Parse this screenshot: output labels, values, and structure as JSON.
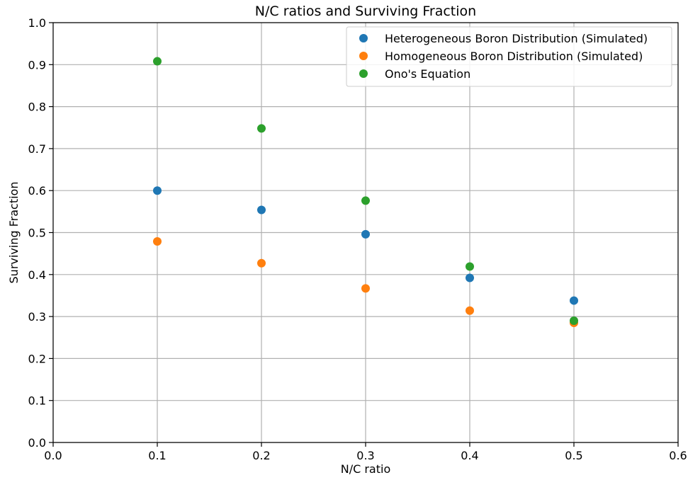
{
  "chart_data": {
    "type": "scatter",
    "title": "N/C ratios and Surviving Fraction",
    "xlabel": "N/C ratio",
    "ylabel": "Surviving Fraction",
    "xlim": [
      0.0,
      0.6
    ],
    "ylim": [
      0.0,
      1.0
    ],
    "xticks": [
      "0.0",
      "0.1",
      "0.2",
      "0.3",
      "0.4",
      "0.5",
      "0.6"
    ],
    "yticks": [
      "0.0",
      "0.1",
      "0.2",
      "0.3",
      "0.4",
      "0.5",
      "0.6",
      "0.7",
      "0.8",
      "0.9",
      "1.0"
    ],
    "grid": true,
    "legend_position": "top-right",
    "series": [
      {
        "name": "Heterogeneous Boron Distribution (Simulated)",
        "color": "#1f77b4",
        "x": [
          0.1,
          0.2,
          0.3,
          0.4,
          0.5
        ],
        "y": [
          0.6,
          0.554,
          0.496,
          0.392,
          0.338
        ]
      },
      {
        "name": "Homogeneous Boron Distribution (Simulated)",
        "color": "#ff7f0e",
        "x": [
          0.1,
          0.2,
          0.3,
          0.4,
          0.5
        ],
        "y": [
          0.479,
          0.427,
          0.367,
          0.314,
          0.285
        ]
      },
      {
        "name": "Ono's Equation",
        "color": "#2ca02c",
        "x": [
          0.1,
          0.2,
          0.3,
          0.4,
          0.5
        ],
        "y": [
          0.908,
          0.748,
          0.576,
          0.419,
          0.29
        ]
      }
    ]
  }
}
